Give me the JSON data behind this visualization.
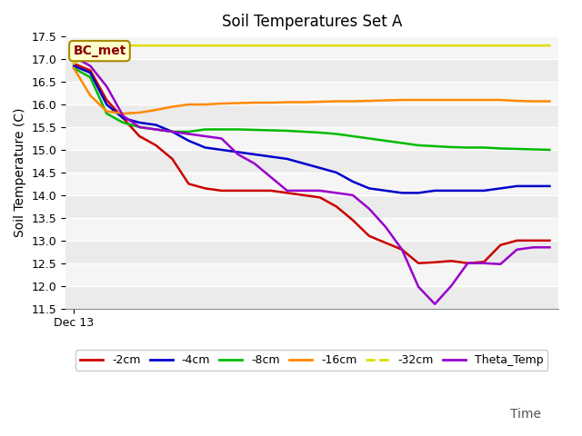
{
  "title": "Soil Temperatures Set A",
  "xlabel": "Time",
  "ylabel": "Soil Temperature (C)",
  "ylim": [
    11.5,
    17.5
  ],
  "annotation": "BC_met",
  "bg_color": "#ebebeb",
  "bg_color_alt": "#f5f5f5",
  "series": {
    "2cm": {
      "color": "#cc0000",
      "x": [
        0,
        1,
        2,
        3,
        4,
        5,
        6,
        7,
        8,
        9,
        10,
        11,
        12,
        13,
        14,
        15,
        16,
        17,
        18,
        19,
        20,
        21,
        22,
        23,
        24,
        25,
        26,
        27,
        28,
        29
      ],
      "y": [
        16.9,
        16.75,
        16.1,
        15.7,
        15.3,
        15.1,
        14.8,
        14.25,
        14.15,
        14.1,
        14.1,
        14.1,
        14.1,
        14.05,
        14.0,
        13.95,
        13.75,
        13.45,
        13.1,
        12.95,
        12.8,
        12.5,
        12.52,
        12.55,
        12.5,
        12.53,
        12.9,
        13.0,
        13.0,
        13.0
      ]
    },
    "4cm": {
      "color": "#0000cc",
      "x": [
        0,
        1,
        2,
        3,
        4,
        5,
        6,
        7,
        8,
        9,
        10,
        11,
        12,
        13,
        14,
        15,
        16,
        17,
        18,
        19,
        20,
        21,
        22,
        23,
        24,
        25,
        26,
        27,
        28,
        29
      ],
      "y": [
        16.85,
        16.7,
        16.0,
        15.7,
        15.6,
        15.55,
        15.4,
        15.2,
        15.05,
        15.0,
        14.95,
        14.9,
        14.85,
        14.8,
        14.7,
        14.6,
        14.5,
        14.3,
        14.15,
        14.1,
        14.05,
        14.05,
        14.1,
        14.1,
        14.1,
        14.1,
        14.15,
        14.2,
        14.2,
        14.2
      ]
    },
    "8cm": {
      "color": "#00bb00",
      "x": [
        0,
        1,
        2,
        3,
        4,
        5,
        6,
        7,
        8,
        9,
        10,
        11,
        12,
        13,
        14,
        15,
        16,
        17,
        18,
        19,
        20,
        21,
        22,
        23,
        24,
        25,
        26,
        27,
        28,
        29
      ],
      "y": [
        16.8,
        16.6,
        15.8,
        15.6,
        15.5,
        15.45,
        15.4,
        15.4,
        15.45,
        15.45,
        15.45,
        15.44,
        15.43,
        15.42,
        15.4,
        15.38,
        15.35,
        15.3,
        15.25,
        15.2,
        15.15,
        15.1,
        15.08,
        15.06,
        15.05,
        15.05,
        15.03,
        15.02,
        15.01,
        15.0
      ]
    },
    "16cm": {
      "color": "#ff8800",
      "x": [
        0,
        1,
        2,
        3,
        4,
        5,
        6,
        7,
        8,
        9,
        10,
        11,
        12,
        13,
        14,
        15,
        16,
        17,
        18,
        19,
        20,
        21,
        22,
        23,
        24,
        25,
        26,
        27,
        28,
        29
      ],
      "y": [
        16.8,
        16.2,
        15.85,
        15.8,
        15.82,
        15.88,
        15.95,
        16.0,
        16.0,
        16.02,
        16.03,
        16.04,
        16.04,
        16.05,
        16.05,
        16.06,
        16.07,
        16.07,
        16.08,
        16.09,
        16.1,
        16.1,
        16.1,
        16.1,
        16.1,
        16.1,
        16.1,
        16.08,
        16.07,
        16.07
      ]
    },
    "32cm": {
      "color": "#dddd00",
      "x": [
        0,
        1,
        2,
        3,
        4,
        5,
        6,
        7,
        8,
        9,
        10,
        11,
        12,
        13,
        14,
        15,
        16,
        17,
        18,
        19,
        20,
        21,
        22,
        23,
        24,
        25,
        26,
        27,
        28,
        29
      ],
      "y": [
        16.9,
        17.25,
        17.3,
        17.3,
        17.3,
        17.3,
        17.3,
        17.3,
        17.3,
        17.3,
        17.3,
        17.3,
        17.3,
        17.3,
        17.3,
        17.3,
        17.3,
        17.3,
        17.3,
        17.3,
        17.3,
        17.3,
        17.3,
        17.3,
        17.3,
        17.3,
        17.3,
        17.3,
        17.3,
        17.3
      ]
    },
    "Theta_Temp": {
      "color": "#9900cc",
      "x": [
        0,
        1,
        2,
        3,
        4,
        5,
        6,
        7,
        8,
        9,
        10,
        11,
        12,
        13,
        14,
        15,
        16,
        17,
        18,
        19,
        20,
        21,
        22,
        23,
        24,
        25,
        26,
        27,
        28,
        29
      ],
      "y": [
        17.05,
        16.85,
        16.4,
        15.75,
        15.5,
        15.45,
        15.4,
        15.35,
        15.3,
        15.25,
        14.9,
        14.7,
        14.4,
        14.1,
        14.1,
        14.1,
        14.05,
        14.0,
        13.7,
        13.3,
        12.8,
        11.98,
        11.6,
        12.0,
        12.5,
        12.5,
        12.48,
        12.8,
        12.85,
        12.85
      ]
    }
  },
  "yticks": [
    11.5,
    12.0,
    12.5,
    13.0,
    13.5,
    14.0,
    14.5,
    15.0,
    15.5,
    16.0,
    16.5,
    17.0,
    17.5
  ],
  "xtick_pos": 0,
  "xtick_label": "Dec 13",
  "legend_labels": [
    "-2cm",
    "-4cm",
    "-8cm",
    "-16cm",
    "-32cm",
    "Theta_Temp"
  ],
  "legend_colors": [
    "#cc0000",
    "#0000cc",
    "#00bb00",
    "#ff8800",
    "#dddd00",
    "#9900cc"
  ]
}
